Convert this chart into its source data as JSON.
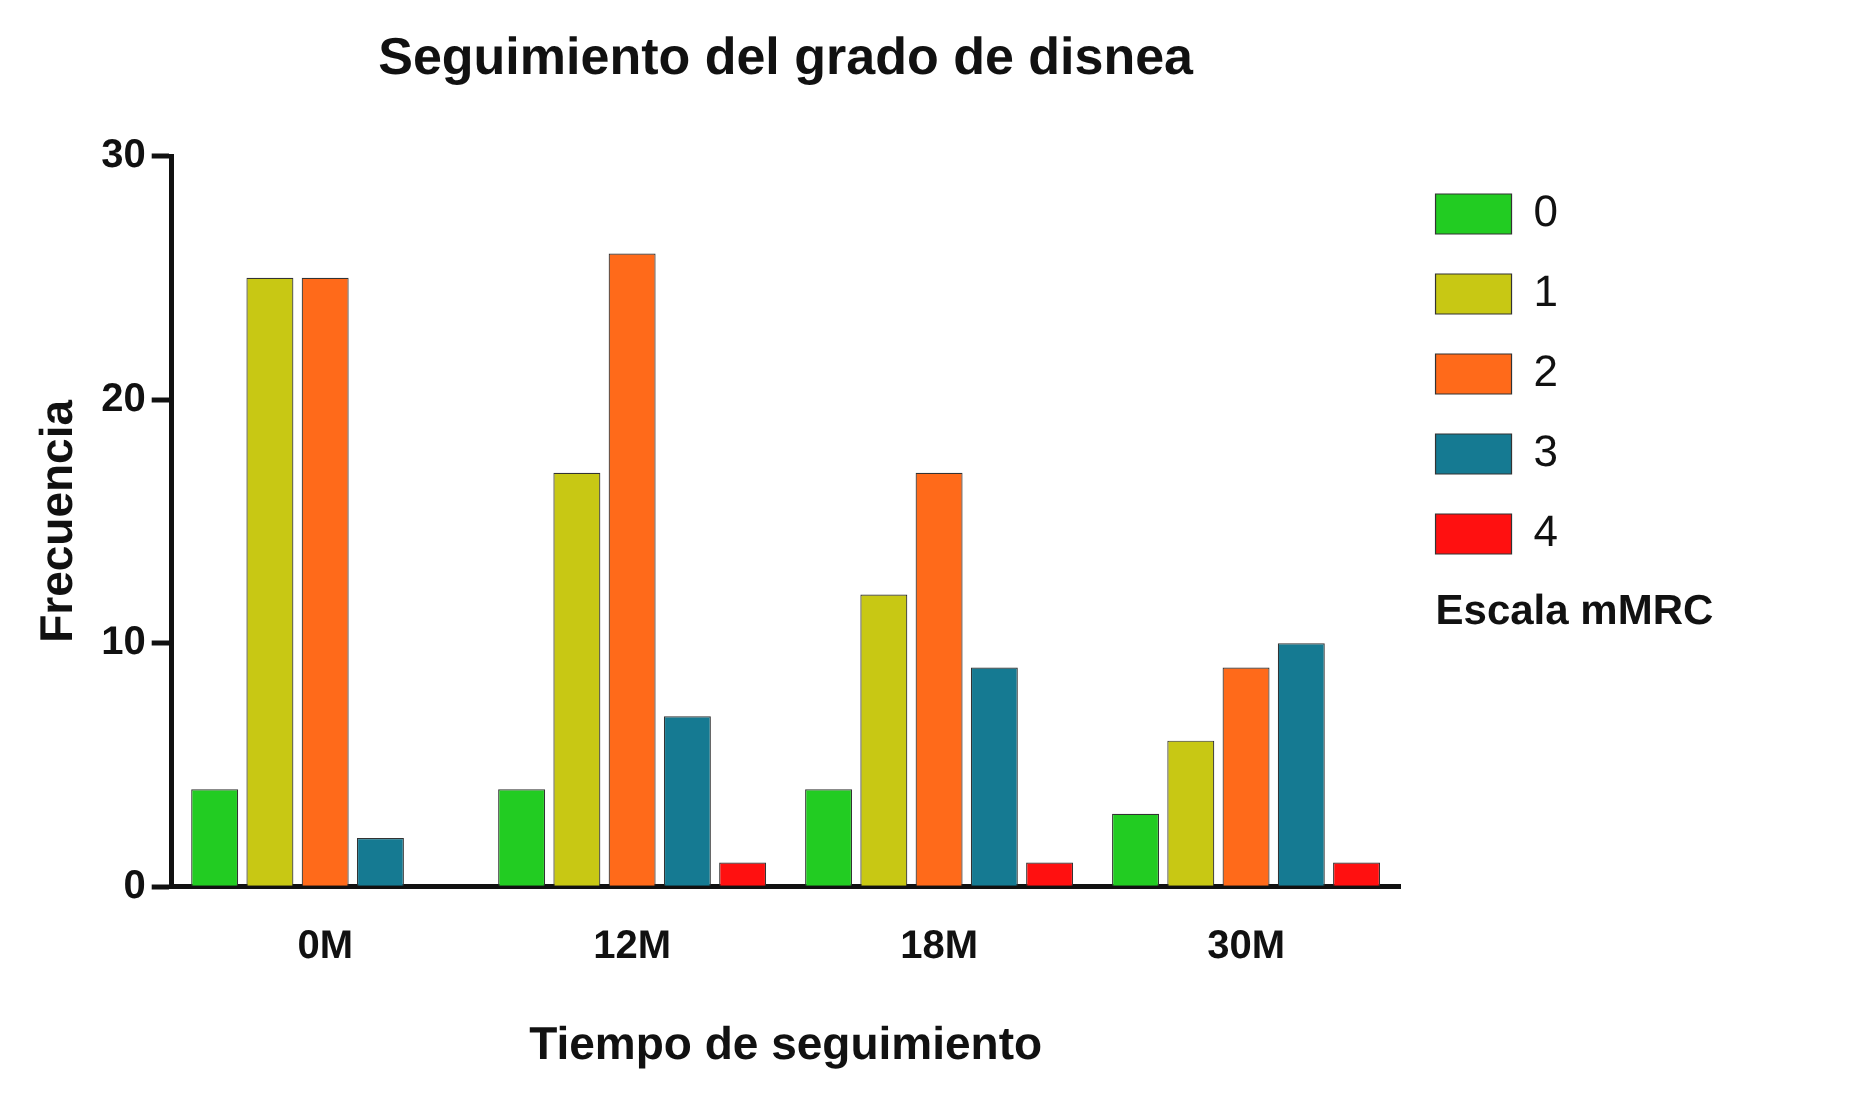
{
  "chart_data": {
    "type": "bar",
    "title": "Seguimiento del grado de disnea",
    "xlabel": "Tiempo de seguimiento",
    "ylabel": "Frecuencia",
    "legend_title": "Escala mMRC",
    "categories": [
      "0M",
      "12M",
      "18M",
      "30M"
    ],
    "series": [
      {
        "name": "0",
        "color": "#22cc22",
        "values": [
          4,
          4,
          4,
          3
        ]
      },
      {
        "name": "1",
        "color": "#c8c814",
        "values": [
          25,
          17,
          12,
          6
        ]
      },
      {
        "name": "2",
        "color": "#ff6a1a",
        "values": [
          25,
          26,
          17,
          9
        ]
      },
      {
        "name": "3",
        "color": "#157a92",
        "values": [
          2,
          7,
          9,
          10
        ]
      },
      {
        "name": "4",
        "color": "#ff1010",
        "values": [
          0,
          1,
          1,
          1
        ]
      }
    ],
    "ylim": [
      0,
      30
    ],
    "yticks": [
      0,
      10,
      20,
      30
    ],
    "grid": false,
    "legend": "right"
  }
}
